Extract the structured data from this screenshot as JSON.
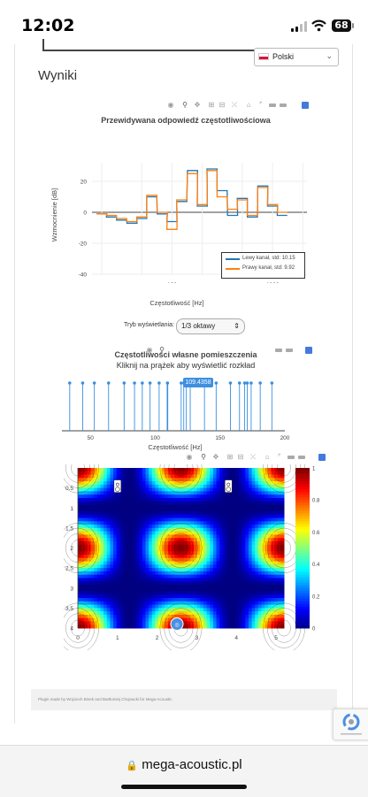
{
  "status_bar": {
    "time": "12:02",
    "battery": "68"
  },
  "language": {
    "selected": "Polski"
  },
  "page": {
    "results_heading": "Wyniki",
    "mode_label": "Tryb wyświetlania:",
    "mode_value": "1/3 oktawy"
  },
  "url": "mega-acoustic.pl",
  "footer": {
    "text": "Plugin made by Wojciech Binek and Bartłomiej Chojnacki for Mega-Acoustic"
  },
  "colors": {
    "left_channel": "#1f77b4",
    "right_channel": "#ff7f0e",
    "modes": "#3a8fdf",
    "accent": "#447adb"
  },
  "chart_data": [
    {
      "type": "line",
      "title": "Przewidywana odpowiedź częstotliwościowa",
      "xlabel": "Częstotliwość [Hz]",
      "ylabel": "Wzmocnienie [dB]",
      "xscale": "log",
      "xlim": [
        16,
        2200
      ],
      "ylim": [
        -40,
        32
      ],
      "yticks": [
        -40,
        -20,
        0,
        20
      ],
      "xtick_labels": [
        "2",
        "5",
        "100",
        "2",
        "5",
        "1000",
        "2"
      ],
      "minor_xtick_values": [
        20,
        50,
        200,
        500,
        2000
      ],
      "major_xtick_values": [
        100,
        1000
      ],
      "x": [
        20,
        25,
        31.5,
        40,
        50,
        63,
        80,
        100,
        125,
        160,
        200,
        250,
        315,
        400,
        500,
        630,
        800,
        1000,
        1250
      ],
      "series": [
        {
          "name": "Lewy kanał, std: 10.15",
          "values": [
            -1,
            -3,
            -5,
            -7,
            -4,
            10,
            -1,
            -6,
            7,
            27,
            4,
            28,
            14,
            -2,
            9,
            -3,
            17,
            4,
            -2
          ]
        },
        {
          "name": "Prawy kanał, std: 9.92",
          "values": [
            -1,
            -2,
            -4,
            -6,
            -3,
            11,
            0,
            -11,
            8,
            25,
            5,
            27,
            10,
            2,
            8,
            -2,
            16,
            5,
            0
          ]
        }
      ],
      "legend_position": "bottom-right",
      "grid": true
    },
    {
      "type": "stem",
      "title": "Częstotliwości własne pomieszczenia",
      "subtitle": "Kliknij na prążek aby wyświetlić rozkład",
      "xlabel": "Częstotliwość [Hz]",
      "xlim": [
        28,
        200
      ],
      "xticks": [
        50,
        100,
        150,
        200
      ],
      "x": [
        34,
        44,
        53,
        64,
        76,
        84,
        90,
        96,
        103,
        109.4358,
        120,
        122,
        124,
        127,
        138,
        147,
        158,
        165,
        169,
        171,
        174,
        181,
        190
      ],
      "highlighted": 109.4358,
      "tooltip": "109.4358"
    },
    {
      "type": "heatmap",
      "xlim": [
        0,
        5.2
      ],
      "ylim": [
        4,
        0
      ],
      "xticks": [
        0,
        1,
        2,
        3,
        4,
        5
      ],
      "ytick_labels": [
        "0.5",
        "1",
        "1.5",
        "2",
        "2.5",
        "3",
        "3.5",
        "4"
      ],
      "ytick_values": [
        0.5,
        1,
        1.5,
        2,
        2.5,
        3,
        3.5,
        4
      ],
      "colorscale": "jet",
      "zlim": [
        0,
        1
      ],
      "colorbar_ticks": [
        0,
        0.2,
        0.4,
        0.6,
        0.8,
        1
      ],
      "nx": 2,
      "ny": 2
    }
  ]
}
